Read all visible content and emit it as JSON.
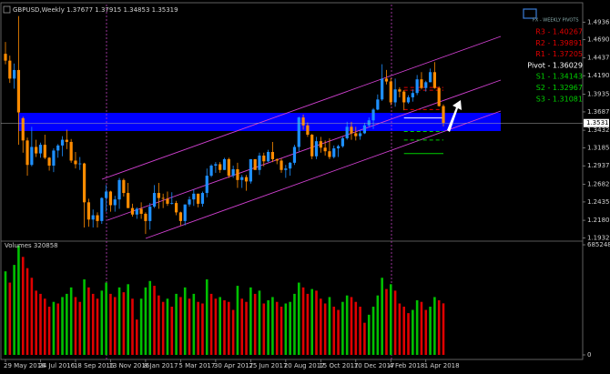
{
  "chart_data": [
    {
      "type": "candlestick",
      "title": "GBPUSD,Weekly 1.37677 1.37915 1.34853 1.35319",
      "badge": "FX - WEEKLY PIVOTS",
      "categories": [
        "29 May 2016",
        null,
        null,
        null,
        null,
        null,
        null,
        null,
        "24 Jul 2016",
        null,
        null,
        null,
        null,
        null,
        null,
        null,
        "18 Sep 2016",
        null,
        null,
        null,
        null,
        null,
        null,
        null,
        "13 Nov 2016",
        null,
        null,
        null,
        null,
        null,
        null,
        null,
        "8 Jan 2017",
        null,
        null,
        null,
        null,
        null,
        null,
        null,
        "5 Mar 2017",
        null,
        null,
        null,
        null,
        null,
        null,
        null,
        "30 Apr 2017",
        null,
        null,
        null,
        null,
        null,
        null,
        null,
        "25 Jun 2017",
        null,
        null,
        null,
        null,
        null,
        null,
        null,
        "20 Aug 2017",
        null,
        null,
        null,
        null,
        null,
        null,
        null,
        "15 Oct 2017",
        null,
        null,
        null,
        null,
        null,
        null,
        null,
        "10 Dec 2017",
        null,
        null,
        null,
        null,
        null,
        null,
        null,
        "4 Feb 2018",
        null,
        null,
        null,
        null,
        null,
        null,
        null,
        "1 Apr 2018",
        null,
        null,
        null,
        null
      ],
      "open": [
        1.4495,
        1.44,
        1.415,
        1.427,
        1.36,
        1.329,
        1.295,
        1.32,
        1.311,
        1.323,
        1.305,
        1.294,
        1.315,
        1.322,
        1.33,
        1.327,
        1.301,
        1.296,
        1.297,
        1.243,
        1.219,
        1.225,
        1.217,
        1.249,
        1.258,
        1.239,
        1.247,
        1.274,
        1.256,
        1.235,
        1.226,
        1.234,
        1.227,
        1.217,
        1.237,
        1.256,
        1.249,
        1.248,
        1.241,
        1.242,
        1.229,
        1.217,
        1.24,
        1.247,
        1.255,
        1.241,
        1.256,
        1.28,
        1.294,
        1.296,
        1.288,
        1.303,
        1.28,
        1.289,
        1.274,
        1.278,
        1.272,
        1.303,
        1.288,
        1.308,
        1.3,
        1.313,
        1.303,
        1.301,
        1.288,
        1.29,
        1.298,
        1.32,
        1.361,
        1.35,
        1.337,
        1.307,
        1.328,
        1.319,
        1.314,
        1.306,
        1.318,
        1.321,
        1.332,
        1.348,
        1.339,
        1.335,
        1.339,
        1.35,
        1.357,
        1.372,
        1.386,
        1.415,
        1.411,
        1.382,
        1.4,
        1.397,
        1.382,
        1.389,
        1.395,
        1.414,
        1.402,
        1.41,
        1.424,
        1.402,
        1.37677
      ],
      "high": [
        1.466,
        1.447,
        1.436,
        1.502,
        1.362,
        1.333,
        1.348,
        1.33,
        1.326,
        1.337,
        1.306,
        1.318,
        1.324,
        1.335,
        1.344,
        1.331,
        1.313,
        1.306,
        1.298,
        1.248,
        1.233,
        1.229,
        1.25,
        1.267,
        1.259,
        1.252,
        1.277,
        1.276,
        1.27,
        1.241,
        1.236,
        1.243,
        1.229,
        1.242,
        1.267,
        1.27,
        1.255,
        1.258,
        1.257,
        1.245,
        1.23,
        1.24,
        1.251,
        1.261,
        1.255,
        1.258,
        1.29,
        1.296,
        1.299,
        1.299,
        1.305,
        1.305,
        1.294,
        1.298,
        1.281,
        1.281,
        1.303,
        1.303,
        1.312,
        1.312,
        1.316,
        1.327,
        1.304,
        1.304,
        1.295,
        1.299,
        1.323,
        1.362,
        1.365,
        1.354,
        1.338,
        1.334,
        1.334,
        1.329,
        1.332,
        1.322,
        1.323,
        1.334,
        1.355,
        1.355,
        1.348,
        1.344,
        1.353,
        1.361,
        1.374,
        1.393,
        1.435,
        1.427,
        1.416,
        1.415,
        1.403,
        1.399,
        1.392,
        1.4,
        1.42,
        1.424,
        1.412,
        1.429,
        1.438,
        1.404,
        1.37915
      ],
      "low": [
        1.435,
        1.409,
        1.401,
        1.323,
        1.312,
        1.28,
        1.293,
        1.306,
        1.305,
        1.303,
        1.287,
        1.285,
        1.305,
        1.307,
        1.317,
        1.298,
        1.29,
        1.288,
        1.208,
        1.209,
        1.208,
        1.208,
        1.213,
        1.23,
        1.23,
        1.23,
        1.234,
        1.251,
        1.235,
        1.223,
        1.22,
        1.22,
        1.199,
        1.205,
        1.235,
        1.234,
        1.235,
        1.238,
        1.24,
        1.225,
        1.211,
        1.211,
        1.237,
        1.238,
        1.236,
        1.237,
        1.25,
        1.278,
        1.284,
        1.284,
        1.288,
        1.277,
        1.277,
        1.263,
        1.263,
        1.259,
        1.269,
        1.288,
        1.281,
        1.293,
        1.299,
        1.299,
        1.296,
        1.284,
        1.277,
        1.28,
        1.295,
        1.314,
        1.344,
        1.334,
        1.303,
        1.303,
        1.312,
        1.308,
        1.303,
        1.304,
        1.306,
        1.319,
        1.33,
        1.33,
        1.329,
        1.33,
        1.338,
        1.347,
        1.345,
        1.371,
        1.384,
        1.407,
        1.378,
        1.376,
        1.389,
        1.371,
        1.38,
        1.383,
        1.392,
        1.4,
        1.397,
        1.41,
        1.401,
        1.376,
        1.34853
      ],
      "close": [
        1.44,
        1.415,
        1.427,
        1.368,
        1.329,
        1.295,
        1.32,
        1.311,
        1.323,
        1.305,
        1.294,
        1.315,
        1.322,
        1.33,
        1.327,
        1.301,
        1.296,
        1.297,
        1.243,
        1.219,
        1.225,
        1.217,
        1.249,
        1.258,
        1.239,
        1.247,
        1.274,
        1.256,
        1.235,
        1.226,
        1.234,
        1.227,
        1.217,
        1.237,
        1.256,
        1.249,
        1.248,
        1.241,
        1.242,
        1.229,
        1.217,
        1.24,
        1.247,
        1.255,
        1.241,
        1.256,
        1.28,
        1.294,
        1.296,
        1.288,
        1.303,
        1.28,
        1.289,
        1.274,
        1.278,
        1.272,
        1.303,
        1.288,
        1.308,
        1.3,
        1.313,
        1.303,
        1.301,
        1.288,
        1.29,
        1.298,
        1.32,
        1.361,
        1.35,
        1.337,
        1.307,
        1.328,
        1.319,
        1.314,
        1.306,
        1.318,
        1.321,
        1.332,
        1.348,
        1.339,
        1.335,
        1.339,
        1.35,
        1.357,
        1.372,
        1.386,
        1.415,
        1.411,
        1.382,
        1.4,
        1.397,
        1.382,
        1.389,
        1.395,
        1.414,
        1.402,
        1.41,
        1.424,
        1.402,
        1.3768,
        1.35319
      ],
      "up_color": "#1e90ff",
      "down_color": "#ff8c00",
      "ylim": [
        1.189,
        1.518
      ],
      "yticks": [
        {
          "value": 1.4936,
          "label": "1.49360"
        },
        1.46905,
        1.44375,
        1.41905,
        {
          "value": 1.3935,
          "label": "1.39350"
        },
        1.36875,
        1.34325,
        1.31855,
        1.29375,
        1.26825,
        {
          "value": 1.2435,
          "label": "1.24350"
        },
        {
          "value": 1.218,
          "label": "1.21800"
        },
        1.19325
      ],
      "last_price": 1.35319,
      "pivots": [
        {
          "label": "R3 - 1.40267",
          "level": 1.40267,
          "color": "#e00000"
        },
        {
          "label": "R2 - 1.39891",
          "level": 1.39891,
          "color": "#e00000"
        },
        {
          "label": "R1 - 1.37205",
          "level": 1.37205,
          "color": "#e00000"
        },
        {
          "label": "Pivot - 1.36029",
          "level": 1.36029,
          "color": "#ffffff"
        },
        {
          "label": "S1 - 1.34143",
          "level": 1.34143,
          "color": "#00d000"
        },
        {
          "label": "S2 - 1.32967",
          "level": 1.32967,
          "color": "#00d000"
        },
        {
          "label": "S3 - 1.31081",
          "level": 1.31081,
          "color": "#00d000"
        }
      ]
    },
    {
      "type": "volume",
      "title": "Volumes 320858",
      "values": [
        520000,
        450000,
        560000,
        680000,
        610000,
        540000,
        480000,
        400000,
        380000,
        350000,
        300000,
        330000,
        320000,
        360000,
        380000,
        420000,
        360000,
        330000,
        470000,
        420000,
        380000,
        350000,
        400000,
        450000,
        380000,
        360000,
        420000,
        390000,
        440000,
        350000,
        220000,
        350000,
        420000,
        460000,
        430000,
        370000,
        330000,
        350000,
        300000,
        380000,
        360000,
        420000,
        350000,
        380000,
        330000,
        320000,
        470000,
        380000,
        350000,
        360000,
        340000,
        330000,
        280000,
        430000,
        350000,
        330000,
        420000,
        380000,
        400000,
        320000,
        340000,
        360000,
        330000,
        300000,
        320000,
        330000,
        380000,
        450000,
        420000,
        380000,
        410000,
        400000,
        350000,
        320000,
        360000,
        300000,
        280000,
        330000,
        370000,
        360000,
        330000,
        300000,
        200000,
        250000,
        300000,
        370000,
        480000,
        410000,
        440000,
        400000,
        320000,
        300000,
        260000,
        280000,
        340000,
        330000,
        280000,
        300000,
        360000,
        340000,
        320858
      ],
      "up_color": "#00c000",
      "down_color": "#e00000",
      "ylim": [
        0,
        708000
      ],
      "yticks": [
        685248,
        0
      ]
    }
  ]
}
